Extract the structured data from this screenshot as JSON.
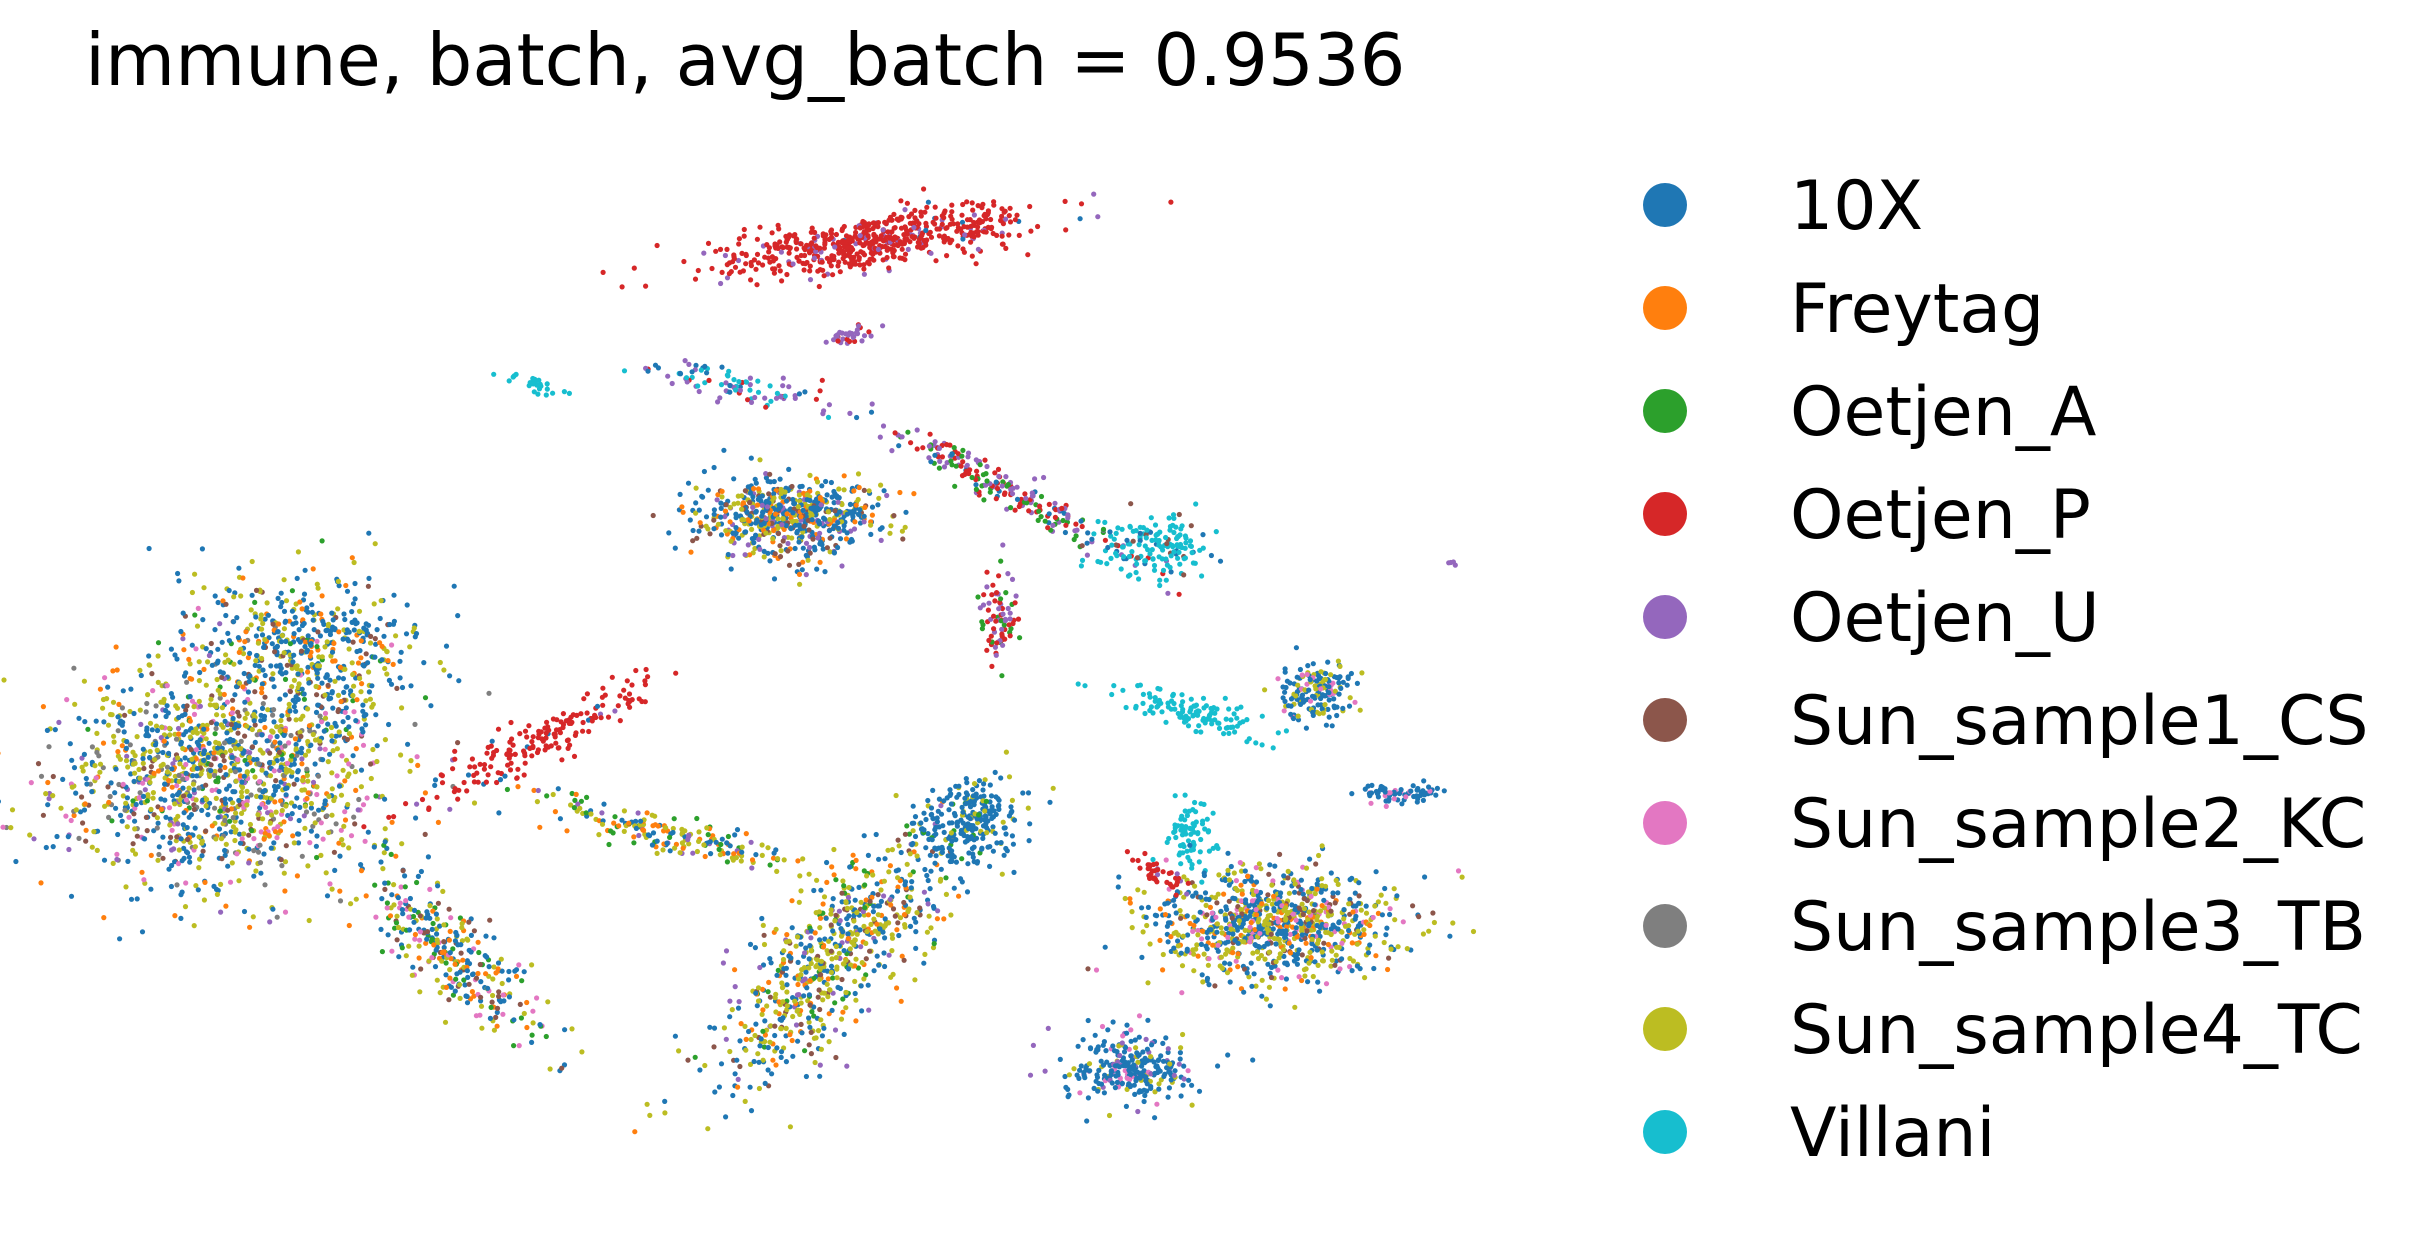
{
  "chart_data": {
    "type": "scatter",
    "title": "immune, batch, avg_batch = 0.9536",
    "xlabel": "",
    "ylabel": "",
    "axes_visible": false,
    "grid": false,
    "legend_position": "right",
    "series": [
      {
        "name": "10X",
        "color": "#1f77b4"
      },
      {
        "name": "Freytag",
        "color": "#ff7f0e"
      },
      {
        "name": "Oetjen_A",
        "color": "#2ca02c"
      },
      {
        "name": "Oetjen_P",
        "color": "#d62728"
      },
      {
        "name": "Oetjen_U",
        "color": "#9467bd"
      },
      {
        "name": "Sun_sample1_CS",
        "color": "#8c564b"
      },
      {
        "name": "Sun_sample2_KC",
        "color": "#e377c2"
      },
      {
        "name": "Sun_sample3_TB",
        "color": "#7f7f7f"
      },
      {
        "name": "Sun_sample4_TC",
        "color": "#bcbd22"
      },
      {
        "name": "Villani",
        "color": "#17becf"
      }
    ],
    "clusters": [
      {
        "name": "left-large",
        "cx": 6,
        "cy": 40,
        "rx": 7,
        "ry": 10,
        "rot": -5,
        "n": 1400,
        "mix": {
          "10X": 0.3,
          "Sun_sample4_TC": 0.3,
          "Sun_sample2_KC": 0.1,
          "Sun_sample3_TB": 0.08,
          "Sun_sample1_CS": 0.07,
          "Freytag": 0.08,
          "Oetjen_U": 0.04,
          "Oetjen_A": 0.03
        }
      },
      {
        "name": "left-upper",
        "cx": 10,
        "cy": 52,
        "rx": 5,
        "ry": 7,
        "rot": 10,
        "n": 500,
        "mix": {
          "10X": 0.55,
          "Sun_sample4_TC": 0.2,
          "Sun_sample1_CS": 0.1,
          "Freytag": 0.1,
          "Oetjen_A": 0.05
        }
      },
      {
        "name": "left-tail",
        "cx": 17,
        "cy": 22,
        "rx": 2.2,
        "ry": 9,
        "rot": 22,
        "n": 330,
        "mix": {
          "10X": 0.35,
          "Sun_sample4_TC": 0.25,
          "Freytag": 0.1,
          "Sun_sample1_CS": 0.1,
          "Oetjen_A": 0.1,
          "Sun_sample2_KC": 0.1
        }
      },
      {
        "name": "red-streak",
        "cx": 21,
        "cy": 43,
        "rx": 1.4,
        "ry": 7,
        "rot": -40,
        "n": 180,
        "mix": {
          "Oetjen_P": 0.92,
          "Oetjen_U": 0.05,
          "10X": 0.03
        }
      },
      {
        "name": "mid-center",
        "cx": 33,
        "cy": 65,
        "rx": 3.8,
        "ry": 3.5,
        "rot": 0,
        "n": 650,
        "mix": {
          "10X": 0.45,
          "Sun_sample4_TC": 0.2,
          "Freytag": 0.15,
          "Sun_sample1_CS": 0.1,
          "Oetjen_U": 0.1
        }
      },
      {
        "name": "mid-bottom",
        "cx": 35,
        "cy": 22,
        "rx": 3,
        "ry": 12,
        "rot": -20,
        "n": 700,
        "mix": {
          "Sun_sample4_TC": 0.35,
          "10X": 0.3,
          "Freytag": 0.12,
          "Sun_sample1_CS": 0.08,
          "Oetjen_A": 0.08,
          "Oetjen_U": 0.07
        }
      },
      {
        "name": "mid-left-arm",
        "cx": 27,
        "cy": 34,
        "rx": 1.6,
        "ry": 7,
        "rot": 60,
        "n": 200,
        "mix": {
          "10X": 0.3,
          "Sun_sample4_TC": 0.3,
          "Freytag": 0.15,
          "Oetjen_A": 0.15,
          "Oetjen_U": 0.1
        }
      },
      {
        "name": "mid-right-arm",
        "cx": 41.5,
        "cy": 35,
        "rx": 2.2,
        "ry": 4,
        "rot": -10,
        "n": 260,
        "mix": {
          "10X": 0.85,
          "Oetjen_A": 0.05,
          "Sun_sample4_TC": 0.1
        }
      },
      {
        "name": "top-red",
        "cx": 37,
        "cy": 92,
        "rx": 7,
        "ry": 2.2,
        "rot": 18,
        "n": 600,
        "mix": {
          "Oetjen_P": 0.88,
          "Oetjen_U": 0.1,
          "10X": 0.02
        }
      },
      {
        "name": "center-branch",
        "cx": 43,
        "cy": 68,
        "rx": 1.2,
        "ry": 8,
        "rot": 40,
        "n": 220,
        "mix": {
          "Oetjen_P": 0.35,
          "Oetjen_U": 0.35,
          "Oetjen_A": 0.2,
          "10X": 0.1
        }
      },
      {
        "name": "center-streak",
        "cx": 43,
        "cy": 55,
        "rx": 0.7,
        "ry": 4,
        "rot": 0,
        "n": 80,
        "mix": {
          "Oetjen_P": 0.4,
          "Oetjen_U": 0.3,
          "Oetjen_A": 0.3
        }
      },
      {
        "name": "upper-small",
        "cx": 30,
        "cy": 78,
        "rx": 4.5,
        "ry": 1.2,
        "rot": -25,
        "n": 90,
        "mix": {
          "Villani": 0.4,
          "Oetjen_U": 0.2,
          "Oetjen_P": 0.2,
          "10X": 0.2
        }
      },
      {
        "name": "villani-topleft",
        "cx": 21,
        "cy": 78,
        "rx": 1.6,
        "ry": 0.6,
        "rot": -25,
        "n": 25,
        "mix": {
          "Villani": 1.0
        }
      },
      {
        "name": "small-purple",
        "cx": 36,
        "cy": 83,
        "rx": 1.4,
        "ry": 0.7,
        "rot": 45,
        "n": 35,
        "mix": {
          "Oetjen_U": 0.6,
          "Oetjen_P": 0.4
        }
      },
      {
        "name": "villani-upper",
        "cx": 50,
        "cy": 62,
        "rx": 2.5,
        "ry": 2.8,
        "rot": 0,
        "n": 160,
        "mix": {
          "Villani": 0.8,
          "10X": 0.1,
          "Sun_sample1_CS": 0.1
        }
      },
      {
        "name": "villani-curve",
        "cx": 52,
        "cy": 46,
        "rx": 4,
        "ry": 1.3,
        "rot": -30,
        "n": 120,
        "mix": {
          "Villani": 1.0
        }
      },
      {
        "name": "villani-lower",
        "cx": 52,
        "cy": 34,
        "rx": 1.0,
        "ry": 3,
        "rot": 0,
        "n": 80,
        "mix": {
          "Villani": 1.0
        }
      },
      {
        "name": "right-big",
        "cx": 56,
        "cy": 25,
        "rx": 5,
        "ry": 5,
        "rot": 0,
        "n": 900,
        "mix": {
          "10X": 0.4,
          "Sun_sample4_TC": 0.3,
          "Freytag": 0.1,
          "Sun_sample1_CS": 0.1,
          "Sun_sample2_KC": 0.1
        }
      },
      {
        "name": "right-bottom",
        "cx": 49,
        "cy": 11,
        "rx": 2.8,
        "ry": 3,
        "rot": 0,
        "n": 280,
        "mix": {
          "10X": 0.7,
          "Sun_sample2_KC": 0.1,
          "Oetjen_U": 0.1,
          "Sun_sample4_TC": 0.1
        }
      },
      {
        "name": "right-small",
        "cx": 58,
        "cy": 48,
        "rx": 1.5,
        "ry": 2.7,
        "rot": 0,
        "n": 170,
        "mix": {
          "10X": 0.6,
          "Sun_sample4_TC": 0.3,
          "Sun_sample2_KC": 0.1
        }
      },
      {
        "name": "right-far",
        "cx": 62,
        "cy": 38,
        "rx": 1.6,
        "ry": 0.9,
        "rot": 0,
        "n": 70,
        "mix": {
          "10X": 0.85,
          "Sun_sample2_KC": 0.15
        }
      },
      {
        "name": "red-right",
        "cx": 50.5,
        "cy": 30,
        "rx": 0.8,
        "ry": 2,
        "rot": 35,
        "n": 40,
        "mix": {
          "Oetjen_P": 0.9,
          "Oetjen_U": 0.1
        }
      },
      {
        "name": "purple-right-tiny",
        "cx": 64.3,
        "cy": 60.5,
        "rx": 0.3,
        "ry": 0.25,
        "rot": 0,
        "n": 4,
        "mix": {
          "Oetjen_U": 1.0
        }
      }
    ]
  }
}
